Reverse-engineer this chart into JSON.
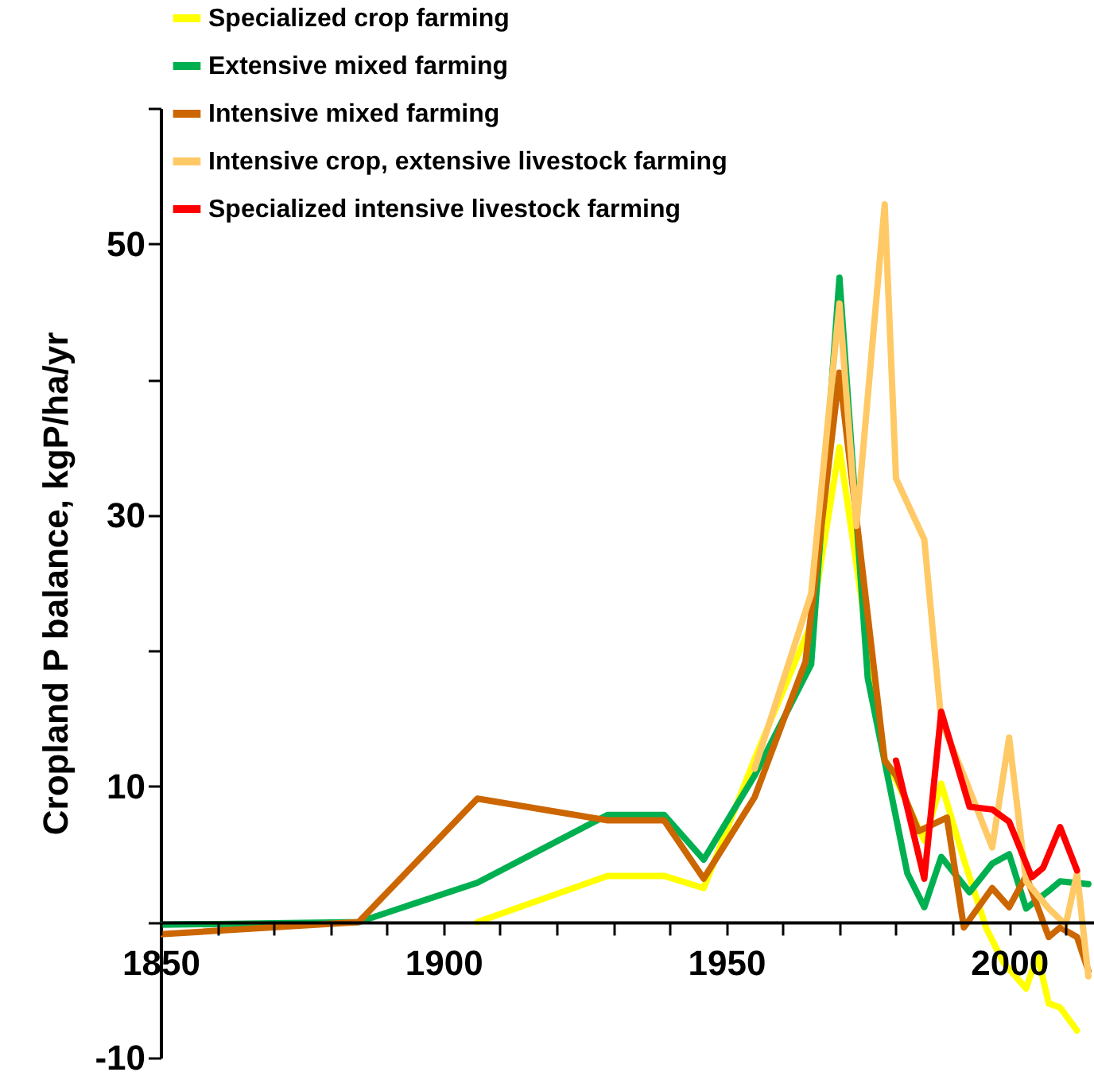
{
  "chart_data": {
    "type": "line",
    "ylabel": "Cropland P balance, kgP/ha/yr",
    "xlim": [
      1850,
      2015
    ],
    "ylim": [
      -10,
      60
    ],
    "xticks": [
      1850,
      {
        "value": 1860,
        "label": null
      },
      {
        "value": 1870,
        "label": null
      },
      {
        "value": 1880,
        "label": null
      },
      {
        "value": 1890,
        "label": null
      },
      1900,
      {
        "value": 1910,
        "label": null
      },
      {
        "value": 1920,
        "label": null
      },
      {
        "value": 1930,
        "label": null
      },
      {
        "value": 1940,
        "label": null
      },
      1950,
      {
        "value": 1960,
        "label": null
      },
      {
        "value": 1970,
        "label": null
      },
      {
        "value": 1980,
        "label": null
      },
      {
        "value": 1990,
        "label": null
      },
      2000,
      {
        "value": 2010,
        "label": null
      }
    ],
    "yticks": [
      -10,
      {
        "value": 0,
        "label": null
      },
      10,
      {
        "value": 20,
        "label": null
      },
      30,
      {
        "value": 40,
        "label": null
      },
      50,
      {
        "value": 60,
        "label": null
      }
    ],
    "legend": "top",
    "grid": false,
    "line_style": "solid",
    "marker": "none",
    "series": [
      {
        "name": "Specialized crop farming",
        "color": "#ffff00",
        "x": [
          1906,
          1929,
          1939,
          1946,
          1955,
          1965,
          1970,
          1978,
          1980,
          1985,
          1988,
          1992,
          1996,
          1999,
          2003,
          2005,
          2007,
          2009,
          2012
        ],
        "values": [
          0,
          3.4,
          3.4,
          2.5,
          12,
          22,
          35,
          12,
          10.5,
          6,
          10.2,
          4.6,
          -0.5,
          -3,
          -4.9,
          -2.4,
          -6,
          -6.3,
          -8
        ]
      },
      {
        "name": "Extensive mixed farming",
        "color": "#00b050",
        "x": [
          1850,
          1885,
          1906,
          1929,
          1939,
          1946,
          1955,
          1965,
          1970,
          1975,
          1982,
          1985,
          1988,
          1993,
          1997,
          2000,
          2003,
          2007,
          2009,
          2014
        ],
        "values": [
          -0.2,
          0,
          2.9,
          7.9,
          7.9,
          4.6,
          10.8,
          19,
          47.5,
          18,
          3.6,
          1.1,
          4.8,
          2.2,
          4.3,
          5,
          1,
          2.3,
          3,
          2.8
        ]
      },
      {
        "name": "Intensive mixed farming",
        "color": "#cc6600",
        "x": [
          1850,
          1885,
          1906,
          1929,
          1939,
          1946,
          1955,
          1964,
          1970,
          1978,
          1980,
          1984,
          1989,
          1992,
          1997,
          2000,
          2003,
          2007,
          2009,
          2012,
          2014
        ],
        "values": [
          -0.9,
          0,
          9.1,
          7.5,
          7.5,
          3.2,
          9.2,
          19.2,
          40.5,
          11.9,
          10.8,
          6.7,
          7.7,
          -0.4,
          2.5,
          1.1,
          3.4,
          -1.1,
          -0.4,
          -1.1,
          -3.6
        ]
      },
      {
        "name": "Intensive crop, extensive livestock farming",
        "color": "#ffc966",
        "x": [
          1955,
          1965,
          1970,
          1973,
          1978,
          1980,
          1985,
          1988,
          1992,
          1997,
          2000,
          2003,
          2007,
          2010,
          2012,
          2014
        ],
        "values": [
          11.3,
          24.2,
          45.6,
          29.2,
          52.9,
          32.7,
          28.2,
          14.8,
          10.8,
          5.5,
          13.6,
          3,
          1,
          -0.2,
          3.6,
          -4
        ]
      },
      {
        "name": "Specialized intensive livestock farming",
        "color": "#ff0000",
        "x": [
          1980,
          1985,
          1988,
          1993,
          1997,
          2000,
          2004,
          2006,
          2009,
          2012
        ],
        "values": [
          11.9,
          3.2,
          15.5,
          8.5,
          8.3,
          7.4,
          3.3,
          4,
          7,
          3.8
        ]
      }
    ]
  }
}
